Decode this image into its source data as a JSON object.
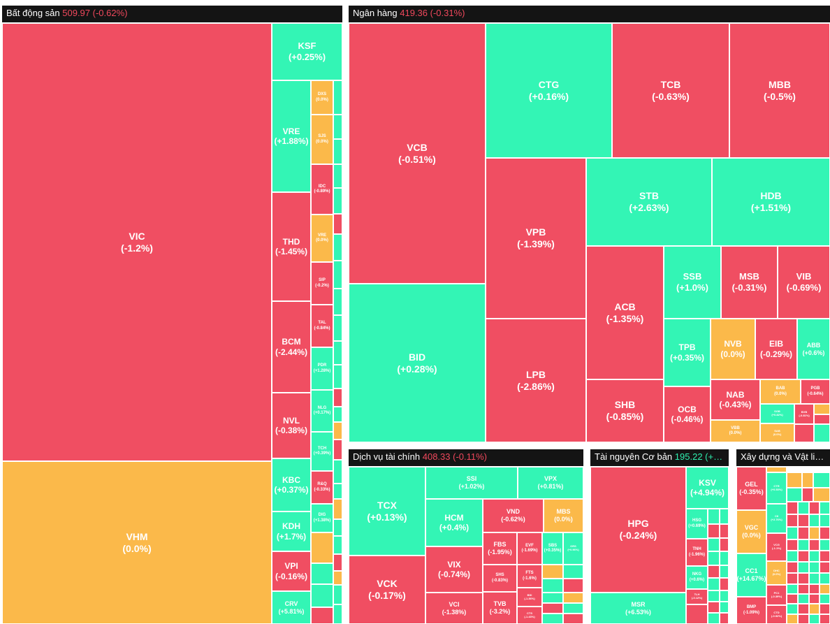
{
  "chart_data": {
    "type": "treemap",
    "colors": {
      "down": "#f04e62",
      "up": "#33f5b5",
      "flat": "#fbb94a",
      "header": "#141414"
    },
    "sectors": [
      {
        "name": "Bất động sản",
        "index": "509.97",
        "change": "(-0.62%)",
        "stocks": [
          {
            "symbol": "VIC",
            "change": "(-1.2%)"
          },
          {
            "symbol": "VHM",
            "change": "(0.0%)"
          },
          {
            "symbol": "KSF",
            "change": "(+0.25%)"
          },
          {
            "symbol": "VRE",
            "change": "(+1.88%)"
          },
          {
            "symbol": "THD",
            "change": "(-1.45%)"
          },
          {
            "symbol": "BCM",
            "change": "(-2.44%)"
          },
          {
            "symbol": "NVL",
            "change": "(-0.38%)"
          },
          {
            "symbol": "KBC",
            "change": "(+0.37%)"
          },
          {
            "symbol": "KDH",
            "change": "(+1.7%)"
          },
          {
            "symbol": "VPI",
            "change": "(-0.16%)"
          },
          {
            "symbol": "CRV",
            "change": "(+5.81%)"
          },
          {
            "symbol": "DXS",
            "change": "(0.0%)"
          },
          {
            "symbol": "SJS",
            "change": "(0.0%)"
          },
          {
            "symbol": "IDC",
            "change": "(-0.89%)"
          },
          {
            "symbol": "VRE",
            "change": "(0.0%)"
          },
          {
            "symbol": "SIP",
            "change": "(-0.2%)"
          },
          {
            "symbol": "TAL",
            "change": "(-0.84%)"
          },
          {
            "symbol": "PDR",
            "change": "(+1.28%)"
          },
          {
            "symbol": "NLG",
            "change": "(+0.17%)"
          },
          {
            "symbol": "TCH",
            "change": "(+0.39%)"
          },
          {
            "symbol": "R&Q",
            "change": "(-0.33%)"
          },
          {
            "symbol": "DIG",
            "change": "(+1.38%)"
          },
          {
            "symbol": "",
            "change": ""
          }
        ]
      },
      {
        "name": "Ngân hàng",
        "index": "419.36",
        "change": "(-0.31%)",
        "stocks": [
          {
            "symbol": "VCB",
            "change": "(-0.51%)"
          },
          {
            "symbol": "BID",
            "change": "(+0.28%)"
          },
          {
            "symbol": "CTG",
            "change": "(+0.16%)"
          },
          {
            "symbol": "TCB",
            "change": "(-0.63%)"
          },
          {
            "symbol": "MBB",
            "change": "(-0.5%)"
          },
          {
            "symbol": "VPB",
            "change": "(-1.39%)"
          },
          {
            "symbol": "STB",
            "change": "(+2.63%)"
          },
          {
            "symbol": "HDB",
            "change": "(+1.51%)"
          },
          {
            "symbol": "LPB",
            "change": "(-2.86%)"
          },
          {
            "symbol": "ACB",
            "change": "(-1.35%)"
          },
          {
            "symbol": "SSB",
            "change": "(+1.0%)"
          },
          {
            "symbol": "MSB",
            "change": "(-0.31%)"
          },
          {
            "symbol": "VIB",
            "change": "(-0.69%)"
          },
          {
            "symbol": "TPB",
            "change": "(+0.35%)"
          },
          {
            "symbol": "NVB",
            "change": "(0.0%)"
          },
          {
            "symbol": "EIB",
            "change": "(-0.29%)"
          },
          {
            "symbol": "ABB",
            "change": "(+0.6%)"
          },
          {
            "symbol": "SHB",
            "change": "(-0.85%)"
          },
          {
            "symbol": "OCB",
            "change": "(-0.46%)"
          },
          {
            "symbol": "NAB",
            "change": "(-0.43%)"
          },
          {
            "symbol": "BAB",
            "change": "(0.0%)"
          },
          {
            "symbol": "PGB",
            "change": "(-0.64%)"
          },
          {
            "symbol": "SGB",
            "change": "(+0.82%)"
          },
          {
            "symbol": "BVB",
            "change": "(-0.81%)"
          },
          {
            "symbol": "VBB",
            "change": "(0.0%)"
          },
          {
            "symbol": "SAB",
            "change": "(0.0%)"
          },
          {
            "symbol": "VAB",
            "change": "(0.0%)"
          }
        ]
      },
      {
        "name": "Dịch vụ tài chính",
        "index": "408.33",
        "change": "(-0.11%)",
        "stocks": [
          {
            "symbol": "TCX",
            "change": "(+0.13%)"
          },
          {
            "symbol": "SSI",
            "change": "(+1.02%)"
          },
          {
            "symbol": "VPX",
            "change": "(+0.81%)"
          },
          {
            "symbol": "HCM",
            "change": "(+0.4%)"
          },
          {
            "symbol": "VND",
            "change": "(-0.62%)"
          },
          {
            "symbol": "MBS",
            "change": "(0.0%)"
          },
          {
            "symbol": "VCK",
            "change": "(-0.17%)"
          },
          {
            "symbol": "VIX",
            "change": "(-0.74%)"
          },
          {
            "symbol": "FBS",
            "change": "(-1.95%)"
          },
          {
            "symbol": "SHS",
            "change": "(-0.83%)"
          },
          {
            "symbol": "VCI",
            "change": "(-1.38%)"
          },
          {
            "symbol": "EVF",
            "change": "(-1.69%)"
          },
          {
            "symbol": "SBS",
            "change": "(+0.35%)"
          },
          {
            "symbol": "ORS",
            "change": "(+0.96%)"
          },
          {
            "symbol": "FTS",
            "change": "(-1.6%)"
          },
          {
            "symbol": "BSI",
            "change": "(-1.36%)"
          },
          {
            "symbol": "TVB",
            "change": "(-3.2%)"
          },
          {
            "symbol": "CTS",
            "change": "(-1.43%)"
          }
        ]
      },
      {
        "name": "Tài nguyên Cơ bản",
        "index": "195.22",
        "change": "(+…",
        "stocks": [
          {
            "symbol": "HPG",
            "change": "(-0.24%)"
          },
          {
            "symbol": "KSV",
            "change": "(+4.94%)"
          },
          {
            "symbol": "MSR",
            "change": "(+6.53%)"
          },
          {
            "symbol": "HSG",
            "change": "(+0.69%)"
          },
          {
            "symbol": "TNH",
            "change": "(-1.96%)"
          },
          {
            "symbol": "NKG",
            "change": "(+0.6%)"
          },
          {
            "symbol": "TLH",
            "change": "(-0.12%)"
          }
        ]
      },
      {
        "name": "Xây dựng và Vật li…",
        "index": "",
        "change": "",
        "stocks": [
          {
            "symbol": "GEL",
            "change": "(-0.35%)"
          },
          {
            "symbol": "VGC",
            "change": "(0.0%)"
          },
          {
            "symbol": "CC1",
            "change": "(+14.67%)"
          },
          {
            "symbol": "BMP",
            "change": "(-1.09%)"
          },
          {
            "symbol": "CTR",
            "change": "(+0.53%)"
          },
          {
            "symbol": "CII",
            "change": "(+2.76%)"
          },
          {
            "symbol": "VCG",
            "change": "(-1.1%)"
          },
          {
            "symbol": "DHC",
            "change": "(0.0%)"
          },
          {
            "symbol": "PC1",
            "change": "(-0.39%)"
          },
          {
            "symbol": "CTD",
            "change": "(-0.92%)"
          }
        ]
      }
    ]
  }
}
